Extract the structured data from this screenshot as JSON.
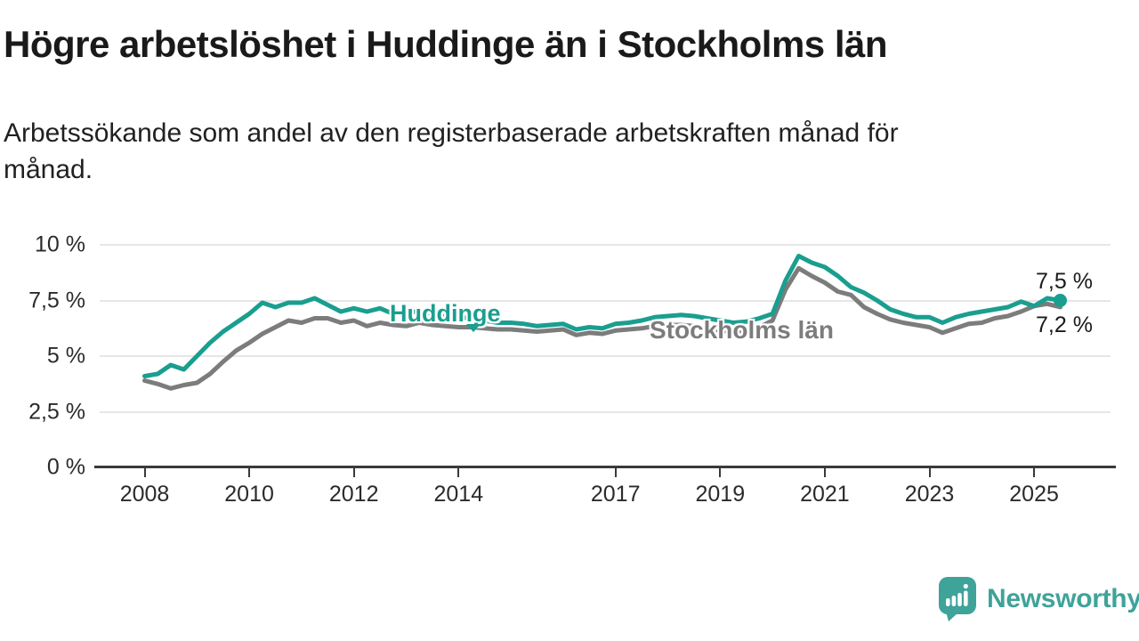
{
  "title": "Högre arbetslöshet i Huddinge än i Stockholms län",
  "subtitle": "Arbetssökande som andel av den registerbaserade arbetskraften månad för månad.",
  "branding": {
    "logo_text": "Newsworthy"
  },
  "colors": {
    "huddinge": "#1a9e8f",
    "stockholm": "#7c7c7c",
    "logo": "#3fa399",
    "grid": "#e6e6e6",
    "axis": "#3a3a3a",
    "text": "#1a1a1a"
  },
  "chart_data": {
    "type": "line",
    "unit": "%",
    "ylim": [
      0,
      10
    ],
    "grid": "horizontal",
    "yticks": [
      {
        "value": 10,
        "label": "10 %"
      },
      {
        "value": 7.5,
        "label": "7,5 %"
      },
      {
        "value": 5,
        "label": "5 %"
      },
      {
        "value": 2.5,
        "label": "2,5 %"
      },
      {
        "value": 0,
        "label": "0 %"
      }
    ],
    "xticks": [
      {
        "year": 2008,
        "label": "2008"
      },
      {
        "year": 2010,
        "label": "2010"
      },
      {
        "year": 2012,
        "label": "2012"
      },
      {
        "year": 2014,
        "label": "2014"
      },
      {
        "year": 2017,
        "label": "2017"
      },
      {
        "year": 2019,
        "label": "2019"
      },
      {
        "year": 2021,
        "label": "2021"
      },
      {
        "year": 2023,
        "label": "2023"
      },
      {
        "year": 2025,
        "label": "2025"
      }
    ],
    "x": [
      2008.0,
      2008.25,
      2008.5,
      2008.75,
      2009.0,
      2009.25,
      2009.5,
      2009.75,
      2010.0,
      2010.25,
      2010.5,
      2010.75,
      2011.0,
      2011.25,
      2011.5,
      2011.75,
      2012.0,
      2012.25,
      2012.5,
      2012.75,
      2013.0,
      2013.25,
      2013.5,
      2013.75,
      2014.0,
      2014.25,
      2014.5,
      2014.75,
      2015.0,
      2015.25,
      2015.5,
      2015.75,
      2016.0,
      2016.25,
      2016.5,
      2016.75,
      2017.0,
      2017.25,
      2017.5,
      2017.75,
      2018.0,
      2018.25,
      2018.5,
      2018.75,
      2019.0,
      2019.25,
      2019.5,
      2019.75,
      2020.0,
      2020.25,
      2020.5,
      2020.75,
      2021.0,
      2021.25,
      2021.5,
      2021.75,
      2022.0,
      2022.25,
      2022.5,
      2022.75,
      2023.0,
      2023.25,
      2023.5,
      2023.75,
      2024.0,
      2024.25,
      2024.5,
      2024.75,
      2025.0,
      2025.25,
      2025.5
    ],
    "series": [
      {
        "name": "Huddinge",
        "color": "#1a9e8f",
        "values": [
          4.1,
          4.2,
          4.6,
          4.4,
          5.0,
          5.6,
          6.1,
          6.5,
          6.9,
          7.4,
          7.2,
          7.4,
          7.4,
          7.6,
          7.3,
          7.0,
          7.15,
          7.0,
          7.15,
          6.9,
          6.9,
          7.05,
          6.9,
          6.8,
          6.75,
          6.7,
          6.6,
          6.5,
          6.5,
          6.45,
          6.35,
          6.4,
          6.45,
          6.2,
          6.3,
          6.25,
          6.45,
          6.5,
          6.6,
          6.75,
          6.8,
          6.85,
          6.8,
          6.7,
          6.6,
          6.5,
          6.55,
          6.7,
          6.9,
          8.4,
          9.5,
          9.2,
          9.0,
          8.6,
          8.1,
          7.85,
          7.5,
          7.1,
          6.9,
          6.75,
          6.75,
          6.5,
          6.75,
          6.9,
          7.0,
          7.1,
          7.2,
          7.45,
          7.25,
          7.6,
          7.5
        ]
      },
      {
        "name": "Stockholms län",
        "color": "#7c7c7c",
        "values": [
          3.9,
          3.75,
          3.55,
          3.7,
          3.8,
          4.2,
          4.75,
          5.25,
          5.6,
          6.0,
          6.3,
          6.6,
          6.5,
          6.7,
          6.7,
          6.5,
          6.6,
          6.35,
          6.5,
          6.4,
          6.35,
          6.5,
          6.4,
          6.35,
          6.3,
          6.3,
          6.25,
          6.2,
          6.2,
          6.15,
          6.1,
          6.15,
          6.2,
          5.95,
          6.05,
          6.0,
          6.15,
          6.2,
          6.25,
          6.35,
          6.4,
          6.4,
          6.35,
          6.25,
          6.15,
          6.1,
          6.15,
          6.3,
          6.6,
          8.0,
          8.95,
          8.6,
          8.3,
          7.9,
          7.75,
          7.2,
          6.9,
          6.65,
          6.5,
          6.4,
          6.3,
          6.05,
          6.25,
          6.45,
          6.5,
          6.7,
          6.8,
          7.0,
          7.25,
          7.35,
          7.2
        ]
      }
    ],
    "end_labels": [
      {
        "series": "Huddinge",
        "text": "7,5 %"
      },
      {
        "series": "Stockholms län",
        "text": "7,2 %"
      }
    ]
  }
}
